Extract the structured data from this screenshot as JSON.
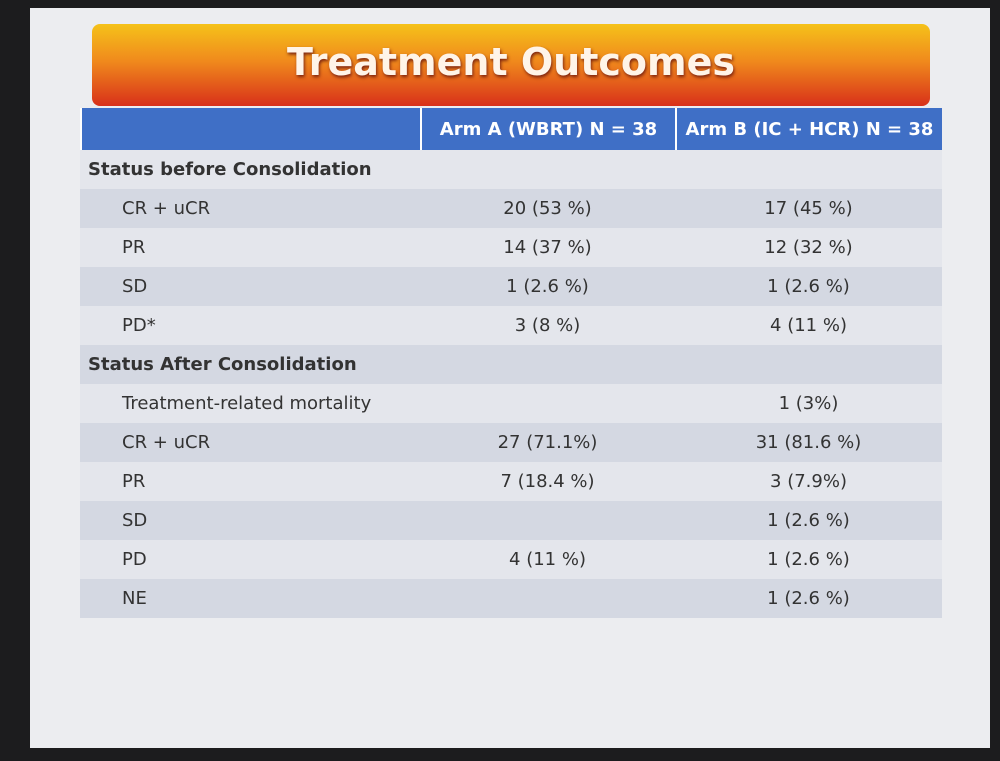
{
  "title": "Treatment Outcomes",
  "table": {
    "header": [
      "Arm A (WBRT) N = 38",
      "Arm B (IC + HCR) N = 38"
    ],
    "rows": [
      {
        "section": "Status before Consolidation"
      },
      {
        "label": "CR + uCR",
        "arm_a": "20  (53 %)",
        "arm_b": "17 (45 %)"
      },
      {
        "label": "PR",
        "arm_a": "14 (37 %)",
        "arm_b": "12 (32 %)"
      },
      {
        "label": "SD",
        "arm_a": "1 (2.6 %)",
        "arm_b": "1 (2.6 %)"
      },
      {
        "label": "PD*",
        "arm_a": "3 (8 %)",
        "arm_b": "4 (11 %)"
      },
      {
        "section": "Status After Consolidation"
      },
      {
        "label": "Treatment-related mortality",
        "arm_b": "1 (3%)"
      },
      {
        "label": "CR + uCR",
        "arm_a": "27 (71.1%)",
        "arm_b": "31 (81.6 %)"
      },
      {
        "label": "PR",
        "arm_a": "7 (18.4 %)",
        "arm_b": "3 (7.9%)"
      },
      {
        "label": "SD",
        "arm_b": "1 (2.6 %)"
      },
      {
        "label": "PD",
        "arm_a": "4 (11 %)",
        "arm_b": "1 (2.6 %)"
      },
      {
        "label": "NE",
        "arm_b": "1 (2.6 %)"
      }
    ]
  }
}
